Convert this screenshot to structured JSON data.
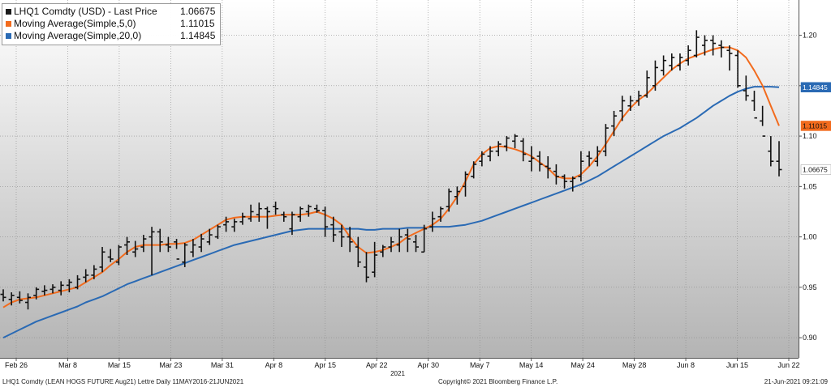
{
  "legend": [
    {
      "name": "LHQ1 Comdty (USD) - Last Price",
      "value": "1.06675",
      "color": "#1a1a1a"
    },
    {
      "name": "Moving Average(Simple,5,0)",
      "value": "1.11015",
      "color": "#f26b1d"
    },
    {
      "name": "Moving Average(Simple,20,0)",
      "value": "1.14845",
      "color": "#2a6ab4"
    }
  ],
  "footer": {
    "left": "LHQ1 Comdty (LEAN HOGS FUTURE  Aug21) Lettre  Daily 11MAY2016-21JUN2021",
    "center": "Copyright© 2021 Bloomberg Finance L.P.",
    "right": "21-Jun-2021 09:21:09"
  },
  "chart_data": {
    "type": "line",
    "x_tick_labels": [
      "Feb 26",
      "Mar 8",
      "Mar 15",
      "Mar 23",
      "Mar 31",
      "Apr 8",
      "Apr 15",
      "Apr 22",
      "Apr 30",
      "May 7",
      "May 14",
      "May 24",
      "May 28",
      "Jun 8",
      "Jun 15",
      "Jun 22"
    ],
    "x_year_label": "2021",
    "y_tick_labels": [
      "0.90",
      "0.95",
      "1.00",
      "1.05",
      "1.10",
      "1.15",
      "1.20"
    ],
    "ylim": [
      0.88,
      1.235
    ],
    "grid": true,
    "legend_position": "top-left",
    "last_value_tags": [
      {
        "label": "1.14845",
        "value": 1.14845,
        "color": "#2a6ab4",
        "text_color": "#ffffff"
      },
      {
        "label": "1.11015",
        "value": 1.11015,
        "color": "#f26b1d",
        "text_color": "#111111"
      },
      {
        "label": "1.06675",
        "value": 1.06675,
        "color": "#ffffff",
        "text_color": "#111111"
      }
    ],
    "ohlc": {
      "open": [
        0.943,
        0.938,
        0.94,
        0.935,
        0.942,
        0.946,
        0.948,
        0.947,
        0.952,
        0.95,
        0.96,
        0.962,
        0.97,
        0.98,
        0.975,
        0.992,
        0.985,
        0.99,
        1.0,
        1.005,
        0.992,
        0.995,
        0.975,
        0.985,
        0.99,
        0.995,
        1.0,
        1.012,
        1.01,
        1.015,
        1.018,
        1.022,
        1.028,
        1.03,
        1.022,
        1.008,
        1.02,
        1.025,
        1.028,
        1.026,
        1.012,
        1.005,
        1.0,
        0.99,
        0.97,
        0.965,
        0.985,
        0.99,
        0.992,
        1.002,
        0.995,
        0.985,
        1.01,
        1.02,
        1.03,
        1.04,
        1.05,
        1.06,
        1.075,
        1.08,
        1.085,
        1.09,
        1.095,
        1.095,
        1.075,
        1.08,
        1.07,
        1.065,
        1.06,
        1.055,
        1.06,
        1.08,
        1.075,
        1.085,
        1.11,
        1.125,
        1.13,
        1.135,
        1.14,
        1.15,
        1.165,
        1.17,
        1.17,
        1.175,
        1.18,
        1.19,
        1.195,
        1.19,
        1.185,
        1.18,
        1.145,
        1.135,
        1.115,
        1.085,
        1.075
      ],
      "high": [
        0.948,
        0.945,
        0.946,
        0.944,
        0.95,
        0.952,
        0.953,
        0.956,
        0.958,
        0.962,
        0.968,
        0.972,
        0.99,
        0.988,
        0.992,
        1.0,
        0.996,
        1.002,
        1.01,
        1.008,
        1.0,
        0.998,
        0.994,
        0.998,
        1.003,
        1.008,
        1.012,
        1.02,
        1.018,
        1.024,
        1.032,
        1.034,
        1.03,
        1.035,
        1.025,
        1.025,
        1.03,
        1.032,
        1.032,
        1.03,
        1.02,
        1.012,
        1.01,
        1.0,
        0.985,
        0.995,
        0.992,
        1.0,
        1.008,
        1.008,
        1.002,
        1.012,
        1.025,
        1.03,
        1.048,
        1.05,
        1.065,
        1.075,
        1.085,
        1.09,
        1.095,
        1.1,
        1.102,
        1.098,
        1.09,
        1.085,
        1.08,
        1.072,
        1.062,
        1.06,
        1.085,
        1.085,
        1.09,
        1.112,
        1.125,
        1.14,
        1.14,
        1.145,
        1.165,
        1.175,
        1.18,
        1.182,
        1.182,
        1.19,
        1.205,
        1.2,
        1.2,
        1.195,
        1.19,
        1.185,
        1.16,
        1.145,
        1.13,
        1.1,
        1.095
      ],
      "low": [
        0.936,
        0.932,
        0.934,
        0.928,
        0.938,
        0.942,
        0.944,
        0.942,
        0.945,
        0.948,
        0.955,
        0.958,
        0.965,
        0.975,
        0.972,
        0.982,
        0.98,
        0.985,
        0.962,
        0.985,
        0.985,
        0.988,
        0.97,
        0.98,
        0.985,
        0.992,
        0.998,
        1.005,
        1.005,
        1.012,
        1.015,
        1.015,
        1.008,
        1.022,
        1.015,
        1.002,
        1.015,
        1.02,
        1.024,
        1.0,
        0.995,
        0.99,
        0.985,
        0.97,
        0.955,
        0.96,
        0.98,
        0.985,
        0.985,
        0.985,
        0.985,
        0.985,
        1.005,
        1.015,
        1.025,
        1.032,
        1.04,
        1.058,
        1.07,
        1.075,
        1.08,
        1.085,
        1.088,
        1.075,
        1.065,
        1.065,
        1.058,
        1.052,
        1.048,
        1.045,
        1.055,
        1.07,
        1.07,
        1.08,
        1.1,
        1.115,
        1.125,
        1.13,
        1.138,
        1.145,
        1.16,
        1.165,
        1.165,
        1.17,
        1.178,
        1.18,
        1.18,
        1.178,
        1.165,
        1.148,
        1.135,
        1.125,
        1.11,
        1.07,
        1.06
      ],
      "close": [
        0.94,
        0.942,
        0.937,
        0.94,
        0.948,
        0.947,
        0.95,
        0.952,
        0.955,
        0.958,
        0.962,
        0.968,
        0.985,
        0.978,
        0.99,
        0.995,
        0.988,
        0.998,
        1.005,
        0.995,
        0.99,
        0.978,
        0.992,
        0.992,
        0.998,
        1.002,
        1.01,
        1.015,
        1.015,
        1.02,
        1.025,
        1.028,
        1.025,
        1.028,
        1.02,
        1.022,
        1.028,
        1.03,
        1.026,
        1.01,
        1.002,
        1.0,
        0.995,
        0.975,
        0.96,
        0.982,
        0.99,
        0.995,
        1.0,
        0.998,
        0.99,
        1.008,
        1.018,
        1.028,
        1.045,
        1.045,
        1.062,
        1.072,
        1.082,
        1.085,
        1.092,
        1.098,
        1.1,
        1.082,
        1.078,
        1.072,
        1.068,
        1.06,
        1.055,
        1.058,
        1.075,
        1.078,
        1.085,
        1.108,
        1.12,
        1.135,
        1.135,
        1.14,
        1.158,
        1.168,
        1.175,
        1.178,
        1.178,
        1.185,
        1.198,
        1.195,
        1.192,
        1.188,
        1.182,
        1.15,
        1.14,
        1.118,
        1.1,
        1.075,
        1.06675
      ]
    },
    "ma5": [
      0.93,
      0.935,
      0.938,
      0.939,
      0.94,
      0.942,
      0.944,
      0.946,
      0.948,
      0.95,
      0.955,
      0.96,
      0.965,
      0.972,
      0.978,
      0.985,
      0.99,
      0.992,
      0.992,
      0.992,
      0.993,
      0.993,
      0.994,
      0.997,
      1.002,
      1.007,
      1.012,
      1.017,
      1.019,
      1.02,
      1.02,
      1.02,
      1.02,
      1.021,
      1.022,
      1.022,
      1.022,
      1.023,
      1.025,
      1.022,
      1.018,
      1.012,
      1.0,
      0.99,
      0.984,
      0.985,
      0.987,
      0.99,
      0.994,
      1.0,
      1.004,
      1.008,
      1.012,
      1.018,
      1.028,
      1.04,
      1.055,
      1.072,
      1.082,
      1.088,
      1.09,
      1.089,
      1.087,
      1.084,
      1.08,
      1.074,
      1.068,
      1.06,
      1.058,
      1.058,
      1.062,
      1.07,
      1.08,
      1.092,
      1.105,
      1.118,
      1.128,
      1.136,
      1.142,
      1.15,
      1.158,
      1.166,
      1.172,
      1.177,
      1.18,
      1.183,
      1.186,
      1.188,
      1.188,
      1.185,
      1.178,
      1.165,
      1.15,
      1.13,
      1.11015
    ],
    "ma20": [
      0.9,
      0.904,
      0.908,
      0.912,
      0.916,
      0.919,
      0.922,
      0.925,
      0.928,
      0.931,
      0.935,
      0.938,
      0.941,
      0.945,
      0.949,
      0.953,
      0.956,
      0.959,
      0.962,
      0.965,
      0.968,
      0.971,
      0.974,
      0.977,
      0.98,
      0.983,
      0.986,
      0.989,
      0.992,
      0.994,
      0.996,
      0.998,
      1.0,
      1.002,
      1.004,
      1.006,
      1.007,
      1.008,
      1.008,
      1.008,
      1.008,
      1.008,
      1.008,
      1.008,
      1.007,
      1.007,
      1.008,
      1.008,
      1.008,
      1.009,
      1.009,
      1.009,
      1.01,
      1.01,
      1.01,
      1.011,
      1.012,
      1.014,
      1.016,
      1.019,
      1.022,
      1.025,
      1.028,
      1.031,
      1.034,
      1.037,
      1.04,
      1.043,
      1.046,
      1.049,
      1.052,
      1.056,
      1.06,
      1.065,
      1.07,
      1.075,
      1.08,
      1.085,
      1.09,
      1.095,
      1.1,
      1.104,
      1.108,
      1.113,
      1.118,
      1.124,
      1.13,
      1.135,
      1.14,
      1.144,
      1.147,
      1.149,
      1.149,
      1.149,
      1.14845
    ]
  }
}
